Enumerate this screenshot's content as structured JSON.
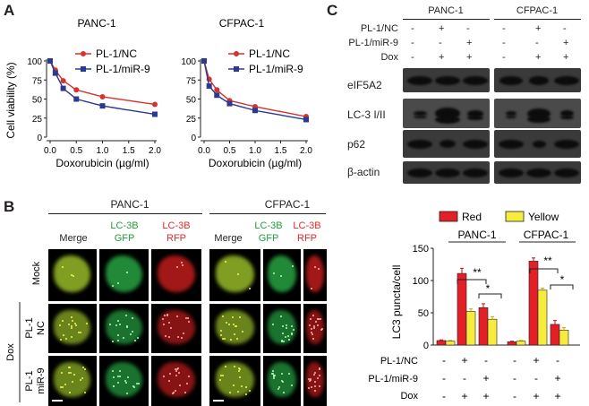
{
  "panel_labels": {
    "a": "A",
    "b": "B",
    "c": "C"
  },
  "panelA": {
    "ylabel": "Cell viability (%)",
    "charts": [
      {
        "title": "PANC-1",
        "xlabel": "Doxorubicin (µg/ml)"
      },
      {
        "title": "CFPAC-1",
        "xlabel": "Doxorubicin (µg/ml)"
      }
    ],
    "legend": [
      "PL-1/NC",
      "PL-1/miR-9"
    ]
  },
  "panelC": {
    "groups": [
      "PANC-1",
      "CFPAC-1"
    ],
    "row_labels": [
      "PL-1/NC",
      "PL-1/miR-9",
      "Dox"
    ],
    "signs": [
      [
        "-",
        "+",
        "-",
        "-",
        "+",
        "-"
      ],
      [
        "-",
        "-",
        "+",
        "-",
        "-",
        "+"
      ],
      [
        "-",
        "+",
        "+",
        "-",
        "+",
        "+"
      ]
    ],
    "blots": [
      "eIF5A2",
      "LC-3 I/II",
      "p62",
      "β-actin"
    ]
  },
  "panelB": {
    "groups": [
      "PANC-1",
      "CFPAC-1"
    ],
    "col_merge": "Merge",
    "col_gfp_1": "LC-3B",
    "col_gfp_2": "GFP",
    "col_rfp_1": "LC-3B",
    "col_rfp_2": "RFP",
    "row_mock": "Mock",
    "row_nc_1": "PL-1",
    "row_nc_2": "NC",
    "row_mir_1": "PL-1",
    "row_mir_2": "miR-9",
    "dox": "Dox"
  },
  "bar_panel": {
    "legend": [
      "Red",
      "Yellow"
    ],
    "ylabel": "LC3 puncta/cell",
    "groups": [
      "PANC-1",
      "CFPAC-1"
    ],
    "row_labels": [
      "PL-1/NC",
      "PL-1/miR-9",
      "Dox"
    ],
    "signs": [
      [
        "-",
        "+",
        "-",
        "-",
        "+",
        "-"
      ],
      [
        "-",
        "-",
        "+",
        "-",
        "-",
        "+"
      ],
      [
        "-",
        "+",
        "+",
        "-",
        "+",
        "+"
      ]
    ],
    "sig": [
      "**",
      "*",
      "**",
      "*"
    ]
  },
  "colors": {
    "red_line": "#d6322e",
    "blue_line": "#2b3990",
    "bar_red": "#e41f26",
    "bar_yellow": "#f5ec3c"
  },
  "chart_data": [
    {
      "type": "line",
      "title": "PANC-1",
      "xlabel": "Doxorubicin (µg/ml)",
      "ylabel": "Cell viability (%)",
      "xlim": [
        0,
        2.0
      ],
      "ylim": [
        0,
        100
      ],
      "xticks": [
        "0.0",
        "0.5",
        "1.0",
        "1.5",
        "2.0"
      ],
      "yticks": [
        "0",
        "25",
        "50",
        "75",
        "100"
      ],
      "x": [
        0,
        0.1,
        0.25,
        0.5,
        1.0,
        2.0
      ],
      "series": [
        {
          "name": "PL-1/NC",
          "values": [
            100,
            88,
            74,
            62,
            53,
            43
          ]
        },
        {
          "name": "PL-1/miR-9",
          "values": [
            100,
            84,
            64,
            50,
            41,
            30
          ]
        }
      ],
      "legend_position": "top-right"
    },
    {
      "type": "line",
      "title": "CFPAC-1",
      "xlabel": "Doxorubicin (µg/ml)",
      "ylabel": "Cell viability (%)",
      "xlim": [
        0,
        2.0
      ],
      "ylim": [
        0,
        100
      ],
      "xticks": [
        "0.0",
        "0.5",
        "1.0",
        "1.5",
        "2.0"
      ],
      "yticks": [
        "0",
        "25",
        "50",
        "75",
        "100"
      ],
      "x": [
        0,
        0.1,
        0.25,
        0.5,
        1.0,
        2.0
      ],
      "series": [
        {
          "name": "PL-1/NC",
          "values": [
            100,
            76,
            62,
            48,
            40,
            27
          ]
        },
        {
          "name": "PL-1/miR-9",
          "values": [
            100,
            67,
            55,
            44,
            35,
            23
          ]
        }
      ],
      "legend_position": "top-right"
    },
    {
      "type": "bar",
      "ylabel": "LC3 puncta/cell",
      "ylim": [
        0,
        150
      ],
      "yticks": [
        "0",
        "50",
        "100",
        "150"
      ],
      "categories": [
        "PANC-1 ctrl",
        "PANC-1 NC+Dox",
        "PANC-1 miR-9+Dox",
        "CFPAC-1 ctrl",
        "CFPAC-1 NC+Dox",
        "CFPAC-1 miR-9+Dox"
      ],
      "series": [
        {
          "name": "Red",
          "values": [
            7,
            111,
            58,
            5,
            130,
            32
          ]
        },
        {
          "name": "Yellow",
          "values": [
            6,
            52,
            40,
            6,
            85,
            23
          ]
        }
      ],
      "legend_position": "top"
    }
  ]
}
